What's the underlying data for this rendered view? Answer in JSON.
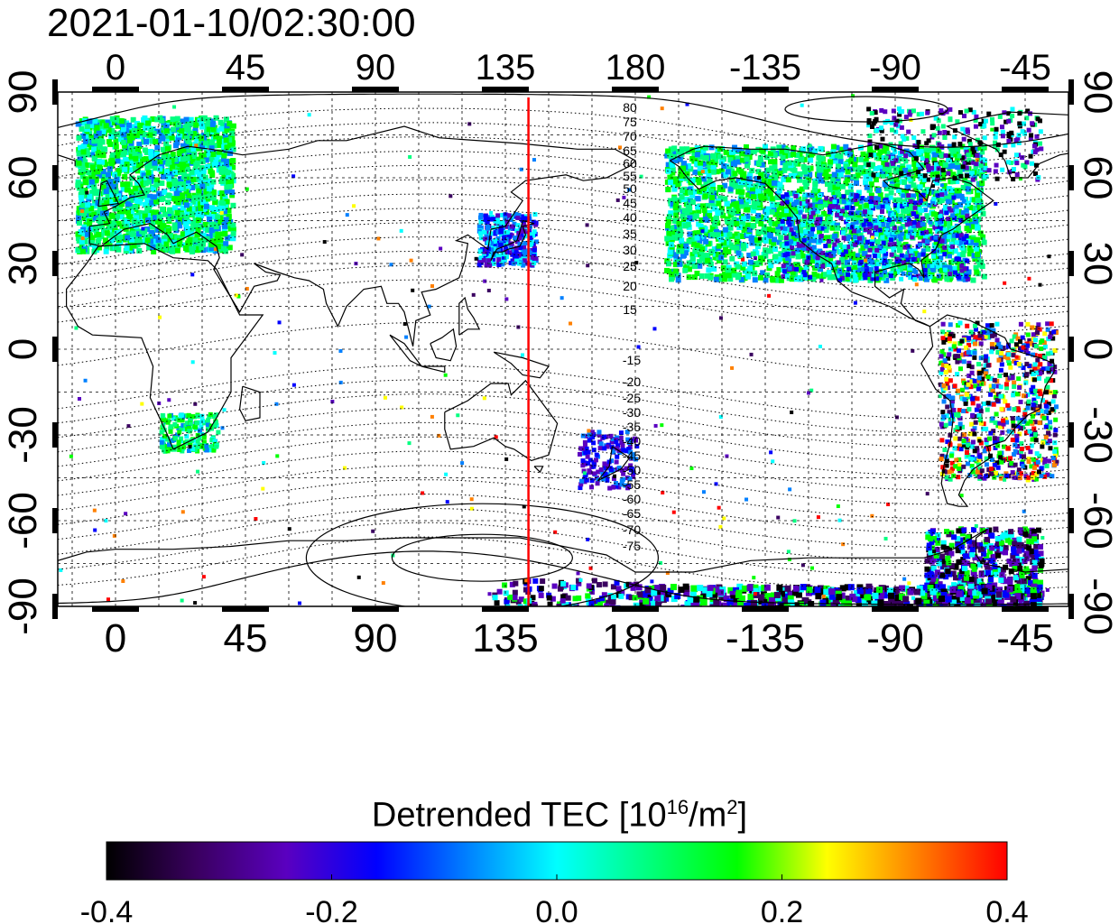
{
  "title": "2021-01-10/02:30:00",
  "map": {
    "top_ticks": [
      "0",
      "45",
      "90",
      "135",
      "180",
      "-135",
      "-90",
      "-45"
    ],
    "bottom_ticks": [
      "0",
      "45",
      "90",
      "135",
      "180",
      "-135",
      "-90",
      "-45"
    ],
    "left_ticks": [
      "90",
      "60",
      "30",
      "0",
      "-30",
      "-60",
      "-90"
    ],
    "right_ticks": [
      "90",
      "60",
      "30",
      "0",
      "-30",
      "-60",
      "-90"
    ],
    "tick_lon_values": [
      0,
      45,
      90,
      135,
      180,
      -135,
      -90,
      -45
    ],
    "tick_lat_values": [
      90,
      60,
      30,
      0,
      -30,
      -60,
      -90
    ],
    "lon_range": [
      -20,
      330
    ],
    "lat_range": [
      -90,
      90
    ],
    "grid": "dashed every 15 degrees",
    "terminator_lon": 143,
    "terminator_color": "#ff0000",
    "north_contour_labels": [
      "80",
      "75",
      "70",
      "65",
      "60",
      "55",
      "50",
      "45",
      "40",
      "35",
      "30",
      "25",
      "20",
      "15"
    ],
    "south_contour_labels": [
      "-15",
      "-20",
      "-25",
      "-30",
      "-35",
      "-40",
      "-45",
      "-50",
      "-55",
      "-60",
      "-65",
      "-70",
      "-75"
    ]
  },
  "colorbar": {
    "label_main": "Detrended TEC  [10",
    "label_sup1": "16",
    "label_mid": "/m",
    "label_sup2": "2",
    "label_end": "]",
    "min": -0.4,
    "max": 0.4,
    "tick_labels": [
      "-0.4",
      "-0.2",
      "0.0",
      "0.2",
      "0.4"
    ],
    "colors": [
      "#000000",
      "#3a0060",
      "#5a00c0",
      "#0000ff",
      "#0080ff",
      "#00ffff",
      "#00ff80",
      "#00ff00",
      "#ffff00",
      "#ff8000",
      "#ff0000"
    ]
  }
}
